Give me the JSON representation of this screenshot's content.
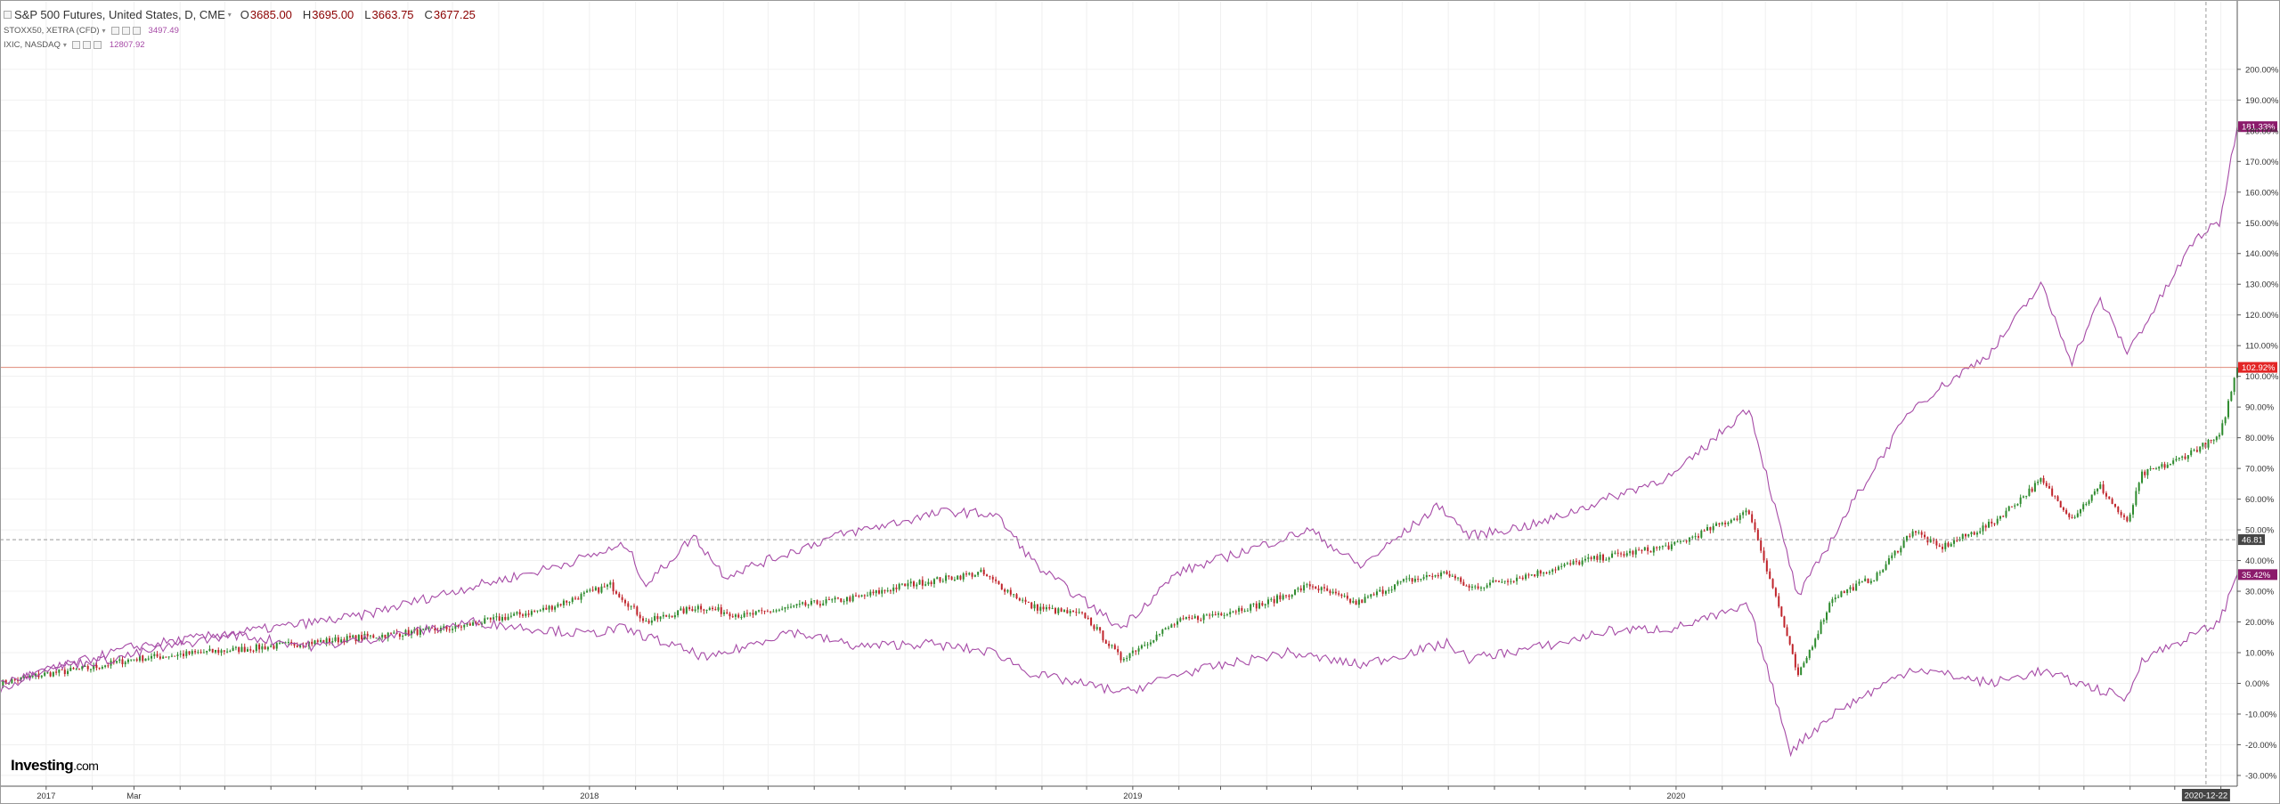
{
  "legend": {
    "main_title": "S&P 500 Futures, United States, D, CME",
    "ohlc": [
      {
        "key": "O",
        "value": "3685.00"
      },
      {
        "key": "H",
        "value": "3695.00"
      },
      {
        "key": "L",
        "value": "3663.75"
      },
      {
        "key": "C",
        "value": "3677.25"
      }
    ],
    "sub": [
      {
        "label": "STOXX50, XETRA (CFD)",
        "value": "3497.49"
      },
      {
        "label": "IXIC, NASDAQ",
        "value": "12807.92"
      }
    ]
  },
  "brand": {
    "name": "Investing",
    "suffix": ".com"
  },
  "colors": {
    "up": "#2e8b2e",
    "down": "#c0242b",
    "line": "#a64aa6",
    "price_line": "#e08a7a",
    "price_badge": "#e32626",
    "series_badge": "#8b1a6b",
    "crosshair_badge": "#444444",
    "grid": "#f0f0f0",
    "axis": "#555555"
  },
  "chart_data": {
    "type": "line",
    "y_unit": "%",
    "ylim": [
      -33.5,
      222
    ],
    "y_ticks": [
      "-30.00%",
      "-20.00%",
      "-10.00%",
      "0.00%",
      "10.00%",
      "20.00%",
      "30.00%",
      "40.00%",
      "50.00%",
      "60.00%",
      "70.00%",
      "80.00%",
      "90.00%",
      "100.00%",
      "110.00%",
      "120.00%",
      "130.00%",
      "140.00%",
      "150.00%",
      "160.00%",
      "170.00%",
      "180.00%",
      "190.00%",
      "200.00%"
    ],
    "x_range": [
      "2016-12-01",
      "2021-01-12"
    ],
    "x_ticks": [
      {
        "date": "2017-01-01",
        "label": "2017"
      },
      {
        "date": "2017-03-01",
        "label": "Mar"
      },
      {
        "date": "2018-01-01",
        "label": "2018"
      },
      {
        "date": "2019-01-01",
        "label": "2019"
      },
      {
        "date": "2020-01-01",
        "label": "2020"
      }
    ],
    "grid": true,
    "crosshair": {
      "date": "2020-12-22",
      "value": 46.81,
      "date_label": "2020-12-22",
      "value_label": "46.81"
    },
    "last_price": {
      "value": 102.92,
      "label": "102.92%"
    },
    "series_labels": [
      {
        "series": "IXIC, NASDAQ",
        "value": 181.33,
        "label": "181.33%"
      },
      {
        "series": "STOXX50, XETRA (CFD)",
        "value": 35.42,
        "label": "35.42%"
      }
    ],
    "series": [
      {
        "name": "S&P 500 Futures, United States, D, CME",
        "style": "candles",
        "points": [
          [
            "2016-12-01",
            0
          ],
          [
            "2016-12-31",
            3
          ],
          [
            "2017-01-31",
            5
          ],
          [
            "2017-03-01",
            8
          ],
          [
            "2017-04-15",
            10
          ],
          [
            "2017-06-01",
            12
          ],
          [
            "2017-08-01",
            15
          ],
          [
            "2017-10-01",
            18
          ],
          [
            "2017-12-01",
            24
          ],
          [
            "2018-01-15",
            32
          ],
          [
            "2018-02-08",
            20
          ],
          [
            "2018-03-15",
            25
          ],
          [
            "2018-04-15",
            22
          ],
          [
            "2018-06-01",
            26
          ],
          [
            "2018-07-01",
            28
          ],
          [
            "2018-08-01",
            32
          ],
          [
            "2018-09-21",
            36
          ],
          [
            "2018-10-25",
            25
          ],
          [
            "2018-11-30",
            22
          ],
          [
            "2018-12-24",
            8
          ],
          [
            "2019-01-31",
            20
          ],
          [
            "2019-03-31",
            26
          ],
          [
            "2019-04-30",
            32
          ],
          [
            "2019-05-31",
            26
          ],
          [
            "2019-06-30",
            33
          ],
          [
            "2019-07-31",
            36
          ],
          [
            "2019-08-15",
            31
          ],
          [
            "2019-09-30",
            36
          ],
          [
            "2019-11-01",
            40
          ],
          [
            "2019-12-31",
            45
          ],
          [
            "2020-02-19",
            56
          ],
          [
            "2020-03-10",
            25
          ],
          [
            "2020-03-23",
            2
          ],
          [
            "2020-04-15",
            28
          ],
          [
            "2020-05-15",
            35
          ],
          [
            "2020-06-08",
            50
          ],
          [
            "2020-06-26",
            44
          ],
          [
            "2020-07-31",
            52
          ],
          [
            "2020-09-02",
            66
          ],
          [
            "2020-09-23",
            54
          ],
          [
            "2020-10-12",
            64
          ],
          [
            "2020-10-30",
            52
          ],
          [
            "2020-11-09",
            68
          ],
          [
            "2020-11-30",
            72
          ],
          [
            "2020-12-18",
            77
          ],
          [
            "2020-12-31",
            80
          ],
          [
            "2021-01-12",
            102.9
          ]
        ]
      },
      {
        "name": "IXIC, NASDAQ",
        "style": "line",
        "points": [
          [
            "2016-12-01",
            0
          ],
          [
            "2016-12-31",
            4
          ],
          [
            "2017-01-31",
            8
          ],
          [
            "2017-03-01",
            12
          ],
          [
            "2017-06-01",
            18
          ],
          [
            "2017-08-01",
            22
          ],
          [
            "2017-10-01",
            30
          ],
          [
            "2017-12-01",
            37
          ],
          [
            "2018-01-26",
            45
          ],
          [
            "2018-02-08",
            32
          ],
          [
            "2018-03-12",
            48
          ],
          [
            "2018-04-02",
            35
          ],
          [
            "2018-06-15",
            48
          ],
          [
            "2018-08-29",
            56
          ],
          [
            "2018-10-01",
            55
          ],
          [
            "2018-10-29",
            38
          ],
          [
            "2018-12-24",
            18
          ],
          [
            "2019-01-31",
            36
          ],
          [
            "2019-04-30",
            50
          ],
          [
            "2019-06-03",
            38
          ],
          [
            "2019-07-26",
            58
          ],
          [
            "2019-08-15",
            48
          ],
          [
            "2019-10-01",
            52
          ],
          [
            "2019-11-15",
            60
          ],
          [
            "2019-12-31",
            68
          ],
          [
            "2020-02-19",
            90
          ],
          [
            "2020-03-23",
            28
          ],
          [
            "2020-04-30",
            60
          ],
          [
            "2020-06-08",
            90
          ],
          [
            "2020-07-31",
            108
          ],
          [
            "2020-09-02",
            130
          ],
          [
            "2020-09-23",
            105
          ],
          [
            "2020-10-12",
            125
          ],
          [
            "2020-10-30",
            108
          ],
          [
            "2020-11-15",
            120
          ],
          [
            "2020-12-15",
            145
          ],
          [
            "2020-12-31",
            150
          ],
          [
            "2021-01-12",
            181.3
          ]
        ]
      },
      {
        "name": "STOXX50, XETRA (CFD)",
        "style": "line",
        "points": [
          [
            "2016-12-01",
            -2
          ],
          [
            "2016-12-31",
            5
          ],
          [
            "2017-02-15",
            8
          ],
          [
            "2017-05-05",
            16
          ],
          [
            "2017-06-30",
            12
          ],
          [
            "2017-08-15",
            15
          ],
          [
            "2017-10-15",
            20
          ],
          [
            "2017-12-31",
            16
          ],
          [
            "2018-01-23",
            18
          ],
          [
            "2018-03-23",
            8
          ],
          [
            "2018-05-15",
            17
          ],
          [
            "2018-07-01",
            12
          ],
          [
            "2018-08-15",
            13
          ],
          [
            "2018-10-01",
            10
          ],
          [
            "2018-10-26",
            3
          ],
          [
            "2018-12-27",
            -3
          ],
          [
            "2019-01-31",
            3
          ],
          [
            "2019-04-15",
            10
          ],
          [
            "2019-06-03",
            6
          ],
          [
            "2019-07-31",
            13
          ],
          [
            "2019-08-15",
            8
          ],
          [
            "2019-10-15",
            13
          ],
          [
            "2019-11-15",
            17
          ],
          [
            "2019-12-31",
            18
          ],
          [
            "2020-02-19",
            25
          ],
          [
            "2020-03-18",
            -22
          ],
          [
            "2020-04-15",
            -10
          ],
          [
            "2020-06-08",
            5
          ],
          [
            "2020-07-31",
            0
          ],
          [
            "2020-09-02",
            4
          ],
          [
            "2020-10-30",
            -5
          ],
          [
            "2020-11-09",
            8
          ],
          [
            "2020-12-15",
            16
          ],
          [
            "2020-12-31",
            20
          ],
          [
            "2021-01-12",
            35.4
          ]
        ]
      }
    ]
  }
}
